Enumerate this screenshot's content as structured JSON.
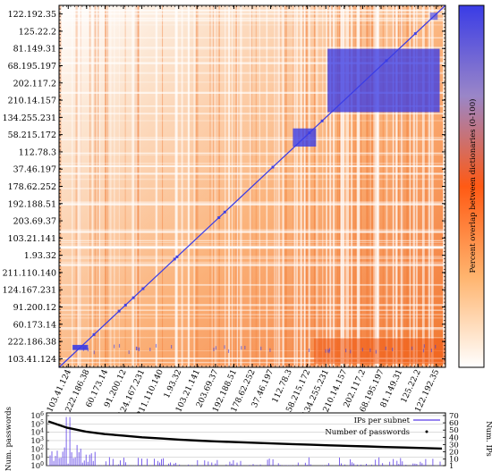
{
  "chart_data": [
    {
      "type": "heatmap",
      "title": "",
      "labels": [
        "103.41.124",
        "222.186.38",
        "60.173.14",
        "91.200.12",
        "124.167.231",
        "211.110.140",
        "1.93.32",
        "103.21.141",
        "203.69.37",
        "192.188.51",
        "178.62.252",
        "37.46.197",
        "112.78.3",
        "58.215.172",
        "134.255.231",
        "210.14.157",
        "202.117.2",
        "68.195.197",
        "81.149.31",
        "125.22.2",
        "122.192.35"
      ],
      "x_ticks": [
        "103.41.124",
        "222.186.38",
        "60.173.14",
        "91.200.12",
        "124.167.231",
        "211.110.140",
        "1.93.32",
        "103.21.141",
        "203.69.37",
        "192.188.51",
        "178.62.252",
        "37.46.197",
        "112.78.3",
        "58.215.172",
        "134.255.231",
        "210.14.157",
        "202.117.2",
        "68.195.197",
        "81.149.31",
        "125.22.2",
        "122.192.35"
      ],
      "y_ticks": [
        "103.41.124",
        "222.186.38",
        "60.173.14",
        "91.200.12",
        "124.167.231",
        "211.110.140",
        "1.93.32",
        "103.21.141",
        "203.69.37",
        "192.188.51",
        "178.62.252",
        "37.46.197",
        "112.78.3",
        "58.215.172",
        "134.255.231",
        "210.14.157",
        "202.117.2",
        "68.195.197",
        "81.149.31",
        "125.22.2",
        "122.192.35"
      ],
      "colorbar": {
        "label": "Percent overlap between dictionaries (0-100)",
        "range": [
          0,
          100
        ],
        "colors": [
          "#ffffff",
          "#ffb46e",
          "#ff5a14",
          "#8c7ad2",
          "#3a3ce6"
        ]
      },
      "grid": false
    },
    {
      "type": "line",
      "ylabel_left": "Num. passwords",
      "ylabel_right": "Num. IPs",
      "left_ticks": [
        "10^0",
        "10^1",
        "10^2",
        "10^3",
        "10^4",
        "10^5",
        "10^6"
      ],
      "right_ticks": [
        "1",
        "10",
        "20",
        "30",
        "40",
        "50",
        "60",
        "70"
      ],
      "yscale_left": "log",
      "ylim_left": [
        1,
        1000000
      ],
      "ylim_right": [
        1,
        70
      ],
      "legend_placement": "top-right",
      "series": [
        {
          "name": "IPs per subnet",
          "color": "#5a3ce6",
          "axis": "right"
        },
        {
          "name": "Number of passwords",
          "color": "#000000",
          "axis": "left",
          "values_approx": [
            200000,
            35000,
            12000,
            6000,
            4000,
            2500,
            1800,
            1300,
            1000,
            800,
            650,
            550,
            450,
            380,
            320,
            270,
            230,
            200,
            170,
            150,
            130,
            110
          ]
        }
      ]
    }
  ]
}
